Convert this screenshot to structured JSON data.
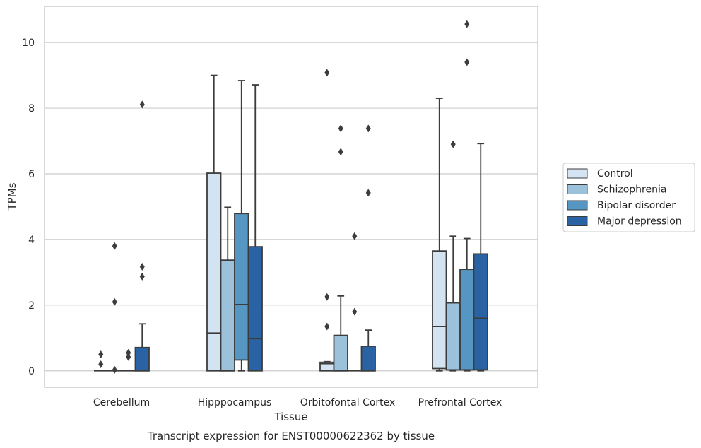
{
  "chart_data": {
    "type": "box",
    "title": "",
    "caption": "Transcript expression for ENST00000622362 by tissue",
    "xlabel": "Tissue",
    "ylabel": "TPMs",
    "ylim": [
      -0.5,
      11.1
    ],
    "yticks": [
      0,
      2,
      4,
      6,
      8,
      10
    ],
    "grid": "horizontal",
    "legend_position": "right",
    "categories": [
      "Cerebellum",
      "Hipppocampus",
      "Orbitofontal Cortex",
      "Prefrontal Cortex"
    ],
    "series": [
      {
        "name": "Control",
        "color": "#d3e3f1",
        "boxes": [
          {
            "q1": 0,
            "median": 0,
            "q3": 0,
            "whisker_low": 0,
            "whisker_high": 0,
            "outliers": [
              0.5,
              0.2
            ]
          },
          {
            "q1": 0,
            "median": 1.15,
            "q3": 6.02,
            "whisker_low": 0,
            "whisker_high": 9.0,
            "outliers": []
          },
          {
            "q1": 0,
            "median": 0.22,
            "q3": 0.26,
            "whisker_low": 0,
            "whisker_high": 0.28,
            "outliers": [
              9.08,
              2.25,
              1.35
            ]
          },
          {
            "q1": 0.07,
            "median": 1.35,
            "q3": 3.65,
            "whisker_low": 0,
            "whisker_high": 8.3,
            "outliers": []
          }
        ]
      },
      {
        "name": "Schizophrenia",
        "color": "#9cc2db",
        "boxes": [
          {
            "q1": 0,
            "median": 0,
            "q3": 0,
            "whisker_low": 0,
            "whisker_high": 0,
            "outliers": [
              3.8,
              2.1,
              0.03
            ]
          },
          {
            "q1": 0,
            "median": 0,
            "q3": 3.37,
            "whisker_low": 0,
            "whisker_high": 4.98,
            "outliers": []
          },
          {
            "q1": 0,
            "median": 0,
            "q3": 1.08,
            "whisker_low": 0,
            "whisker_high": 2.28,
            "outliers": [
              7.38,
              6.67
            ]
          },
          {
            "q1": 0.03,
            "median": 0.03,
            "q3": 2.07,
            "whisker_low": 0,
            "whisker_high": 4.1,
            "outliers": [
              6.9
            ]
          }
        ]
      },
      {
        "name": "Bipolar disorder",
        "color": "#5596c2",
        "boxes": [
          {
            "q1": 0,
            "median": 0,
            "q3": 0,
            "whisker_low": 0,
            "whisker_high": 0,
            "outliers": [
              0.55,
              0.42
            ]
          },
          {
            "q1": 0.33,
            "median": 2.02,
            "q3": 4.79,
            "whisker_low": 0,
            "whisker_high": 8.84,
            "outliers": []
          },
          {
            "q1": 0,
            "median": 0,
            "q3": 0,
            "whisker_low": 0,
            "whisker_high": 0,
            "outliers": [
              4.1,
              1.8
            ]
          },
          {
            "q1": 0.03,
            "median": 0.03,
            "q3": 3.09,
            "whisker_low": 0,
            "whisker_high": 4.03,
            "outliers": [
              10.56,
              9.4
            ]
          }
        ]
      },
      {
        "name": "Major depression",
        "color": "#2a63a3",
        "boxes": [
          {
            "q1": 0,
            "median": 0,
            "q3": 0.71,
            "whisker_low": 0,
            "whisker_high": 1.43,
            "outliers": [
              8.11,
              3.17,
              2.87
            ]
          },
          {
            "q1": 0,
            "median": 0.98,
            "q3": 3.78,
            "whisker_low": 0,
            "whisker_high": 8.71,
            "outliers": []
          },
          {
            "q1": 0,
            "median": 0,
            "q3": 0.75,
            "whisker_low": 0,
            "whisker_high": 1.24,
            "outliers": [
              7.38,
              5.42
            ]
          },
          {
            "q1": 0.03,
            "median": 1.6,
            "q3": 3.56,
            "whisker_low": 0,
            "whisker_high": 6.92,
            "outliers": []
          }
        ]
      }
    ]
  }
}
